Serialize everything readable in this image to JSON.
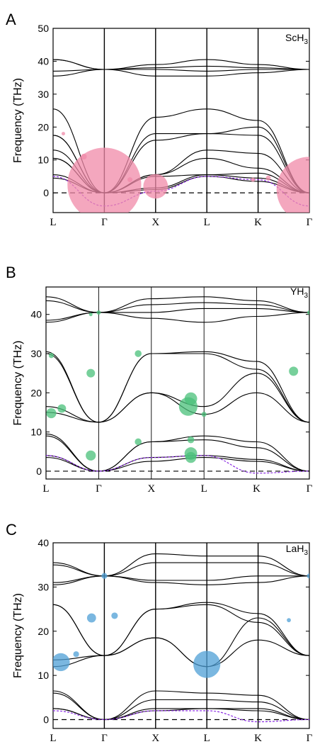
{
  "chart_data": [
    {
      "panel_label": "A",
      "title": "ScH3",
      "title_main": "ScH",
      "title_sub": "3",
      "type": "line",
      "ylabel": "Frequency (THz)",
      "ylim": [
        -6,
        50
      ],
      "yticks": [
        0,
        10,
        20,
        30,
        40,
        50
      ],
      "xticks": [
        "L",
        "Γ",
        "X",
        "L",
        "K",
        "Γ"
      ],
      "xtick_pos": [
        0,
        1,
        2,
        3,
        4,
        5
      ],
      "bubble_color": "#f08aa8",
      "branches": [
        {
          "x": [
            0,
            1,
            2,
            3,
            4,
            5
          ],
          "y": [
            5.5,
            0,
            1.5,
            5.5,
            4.5,
            0
          ]
        },
        {
          "x": [
            0,
            1,
            2,
            3,
            4,
            5
          ],
          "y": [
            4.5,
            0,
            1.0,
            5.0,
            3.5,
            0
          ]
        },
        {
          "x": [
            0,
            1,
            2,
            3,
            4,
            5
          ],
          "y": [
            10.5,
            0,
            5.0,
            5.5,
            6.0,
            0
          ]
        },
        {
          "x": [
            0,
            1,
            2,
            3,
            4,
            5
          ],
          "y": [
            10.5,
            0,
            5.5,
            10.5,
            7.5,
            0
          ]
        },
        {
          "x": [
            0,
            1,
            2,
            3,
            4,
            5
          ],
          "y": [
            13.0,
            0,
            5.5,
            13.0,
            12.0,
            0
          ]
        },
        {
          "x": [
            0,
            1,
            2,
            3,
            4,
            5
          ],
          "y": [
            17.5,
            0,
            16.0,
            18.0,
            20.0,
            0
          ]
        },
        {
          "x": [
            0,
            1,
            2,
            3,
            4,
            5
          ],
          "y": [
            17.5,
            0,
            18.0,
            18.0,
            17.5,
            0
          ]
        },
        {
          "x": [
            0,
            1,
            2,
            3,
            4,
            5
          ],
          "y": [
            25.5,
            0,
            23.0,
            25.5,
            22.0,
            0
          ]
        },
        {
          "x": [
            0,
            1,
            2,
            3,
            4,
            5
          ],
          "y": [
            40.5,
            37.5,
            39.0,
            40.5,
            39.0,
            37.5
          ]
        },
        {
          "x": [
            0,
            1,
            2,
            3,
            4,
            5
          ],
          "y": [
            40.5,
            37.5,
            38.0,
            38.5,
            38.0,
            37.5
          ]
        },
        {
          "x": [
            0,
            1,
            2,
            3,
            4,
            5
          ],
          "y": [
            37.0,
            37.5,
            37.5,
            37.0,
            37.5,
            37.5
          ]
        },
        {
          "x": [
            0,
            1,
            2,
            3,
            4,
            5
          ],
          "y": [
            35.5,
            37.5,
            35.5,
            35.5,
            36.5,
            37.5
          ]
        }
      ],
      "dashed_branches": [
        {
          "x": [
            0,
            1,
            2,
            3,
            4,
            5
          ],
          "y": [
            5.0,
            -4.0,
            0.5,
            5.0,
            4.0,
            -4.0
          ]
        }
      ],
      "bubbles": [
        {
          "x": 1.0,
          "y": 2.5,
          "r": 9.0
        },
        {
          "x": 5.0,
          "y": 1.0,
          "r": 8.0
        },
        {
          "x": 2.0,
          "y": 2.0,
          "r": 3.0
        },
        {
          "x": 0.6,
          "y": 11.0,
          "r": 0.7
        },
        {
          "x": 0.2,
          "y": 18.0,
          "r": 0.3
        },
        {
          "x": 1.5,
          "y": 4.0,
          "r": 0.6
        },
        {
          "x": 4.2,
          "y": 4.5,
          "r": 0.6
        },
        {
          "x": 3.9,
          "y": 4.0,
          "r": 0.5
        }
      ]
    },
    {
      "panel_label": "B",
      "title": "YH3",
      "title_main": "YH",
      "title_sub": "3",
      "type": "line",
      "ylabel": "Frequency (THz)",
      "ylim": [
        -2,
        47
      ],
      "yticks": [
        0,
        10,
        20,
        30,
        40
      ],
      "xticks": [
        "L",
        "Γ",
        "X",
        "L",
        "K",
        "Γ"
      ],
      "xtick_pos": [
        0,
        1,
        2,
        3,
        4,
        5
      ],
      "bubble_color": "#49c07a",
      "branches": [
        {
          "x": [
            0,
            1,
            2,
            3,
            4,
            5
          ],
          "y": [
            4.0,
            0,
            3.5,
            4.0,
            3.0,
            0
          ]
        },
        {
          "x": [
            0,
            1,
            2,
            3,
            4,
            5
          ],
          "y": [
            3.5,
            0,
            2.5,
            3.5,
            2.5,
            0
          ]
        },
        {
          "x": [
            0,
            1,
            2,
            3,
            4,
            5
          ],
          "y": [
            9.0,
            0,
            7.5,
            8.0,
            6.0,
            0
          ]
        },
        {
          "x": [
            0,
            1,
            2,
            3,
            4,
            5
          ],
          "y": [
            9.5,
            0,
            7.5,
            9.0,
            7.5,
            0
          ]
        },
        {
          "x": [
            0,
            1,
            2,
            3,
            4,
            5
          ],
          "y": [
            15.0,
            12.5,
            20.0,
            14.5,
            20.0,
            12.5
          ]
        },
        {
          "x": [
            0,
            1,
            2,
            3,
            4,
            5
          ],
          "y": [
            16.5,
            12.5,
            20.0,
            16.5,
            25.0,
            12.5
          ]
        },
        {
          "x": [
            0,
            1,
            2,
            3,
            4,
            5
          ],
          "y": [
            30.0,
            12.5,
            30.0,
            30.0,
            26.0,
            12.5
          ]
        },
        {
          "x": [
            0,
            1,
            2,
            3,
            4,
            5
          ],
          "y": [
            30.5,
            12.5,
            30.0,
            30.5,
            28.0,
            12.5
          ]
        },
        {
          "x": [
            0,
            1,
            2,
            3,
            4,
            5
          ],
          "y": [
            44.5,
            40.5,
            44.0,
            44.5,
            43.5,
            40.5
          ]
        },
        {
          "x": [
            0,
            1,
            2,
            3,
            4,
            5
          ],
          "y": [
            43.5,
            40.5,
            42.5,
            43.0,
            42.5,
            40.5
          ]
        },
        {
          "x": [
            0,
            1,
            2,
            3,
            4,
            5
          ],
          "y": [
            38.5,
            40.5,
            40.5,
            41.5,
            41.5,
            40.5
          ]
        },
        {
          "x": [
            0,
            1,
            2,
            3,
            4,
            5
          ],
          "y": [
            38.0,
            40.5,
            39.0,
            38.0,
            39.5,
            40.5
          ]
        }
      ],
      "dashed_branches": [
        {
          "x": [
            0,
            1,
            2,
            3,
            4,
            5
          ],
          "y": [
            4.0,
            0,
            3.5,
            4.0,
            -0.5,
            0
          ]
        }
      ],
      "bubbles": [
        {
          "x": 0.3,
          "y": 16.0,
          "r": 1.0
        },
        {
          "x": 0.1,
          "y": 14.8,
          "r": 1.2
        },
        {
          "x": 0.1,
          "y": 29.5,
          "r": 0.6
        },
        {
          "x": 0.85,
          "y": 25.0,
          "r": 1.0
        },
        {
          "x": 0.85,
          "y": 4.0,
          "r": 1.2
        },
        {
          "x": 1.75,
          "y": 30.0,
          "r": 0.8
        },
        {
          "x": 1.75,
          "y": 7.5,
          "r": 0.8
        },
        {
          "x": 2.7,
          "y": 16.5,
          "r": 2.2
        },
        {
          "x": 2.75,
          "y": 18.5,
          "r": 1.5
        },
        {
          "x": 2.75,
          "y": 8.0,
          "r": 0.8
        },
        {
          "x": 2.75,
          "y": 4.5,
          "r": 1.5
        },
        {
          "x": 2.75,
          "y": 3.5,
          "r": 1.3
        },
        {
          "x": 3.0,
          "y": 14.5,
          "r": 0.6
        },
        {
          "x": 4.7,
          "y": 25.5,
          "r": 1.1
        },
        {
          "x": 1.0,
          "y": 40.5,
          "r": 0.5
        },
        {
          "x": 0.85,
          "y": 40.0,
          "r": 0.3
        },
        {
          "x": 5.0,
          "y": 40.5,
          "r": 0.5
        }
      ]
    },
    {
      "panel_label": "C",
      "title": "LaH3",
      "title_main": "LaH",
      "title_sub": "3",
      "type": "line",
      "ylabel": "Frequency (THz)",
      "ylim": [
        -2,
        40
      ],
      "yticks": [
        0,
        10,
        20,
        30,
        40
      ],
      "xticks": [
        "L",
        "Γ",
        "X",
        "L",
        "K",
        "Γ"
      ],
      "xtick_pos": [
        0,
        1,
        2,
        3,
        4,
        5
      ],
      "bubble_color": "#4d9fd6",
      "branches": [
        {
          "x": [
            0,
            1,
            2,
            3,
            4,
            5
          ],
          "y": [
            2.5,
            0,
            2.5,
            2.5,
            2.5,
            0
          ]
        },
        {
          "x": [
            0,
            1,
            2,
            3,
            4,
            5
          ],
          "y": [
            2.5,
            0,
            2.0,
            2.5,
            2.0,
            0
          ]
        },
        {
          "x": [
            0,
            1,
            2,
            3,
            4,
            5
          ],
          "y": [
            6.0,
            0,
            4.5,
            4.5,
            4.0,
            0
          ]
        },
        {
          "x": [
            0,
            1,
            2,
            3,
            4,
            5
          ],
          "y": [
            6.5,
            0,
            6.5,
            6.0,
            5.5,
            0
          ]
        },
        {
          "x": [
            0,
            1,
            2,
            3,
            4,
            5
          ],
          "y": [
            12.0,
            14.5,
            18.5,
            12.0,
            18.0,
            14.5
          ]
        },
        {
          "x": [
            0,
            1,
            2,
            3,
            4,
            5
          ],
          "y": [
            13.5,
            14.5,
            18.5,
            12.0,
            23.0,
            14.5
          ]
        },
        {
          "x": [
            0,
            1,
            2,
            3,
            4,
            5
          ],
          "y": [
            26.0,
            14.5,
            25.0,
            26.0,
            22.0,
            14.5
          ]
        },
        {
          "x": [
            0,
            1,
            2,
            3,
            4,
            5
          ],
          "y": [
            26.0,
            14.5,
            25.0,
            26.5,
            24.0,
            14.5
          ]
        },
        {
          "x": [
            0,
            1,
            2,
            3,
            4,
            5
          ],
          "y": [
            35.5,
            32.5,
            37.5,
            37.0,
            37.0,
            32.5
          ]
        },
        {
          "x": [
            0,
            1,
            2,
            3,
            4,
            5
          ],
          "y": [
            35.0,
            32.5,
            35.5,
            35.5,
            35.5,
            32.5
          ]
        },
        {
          "x": [
            0,
            1,
            2,
            3,
            4,
            5
          ],
          "y": [
            31.0,
            32.5,
            31.5,
            31.5,
            32.5,
            32.5
          ]
        },
        {
          "x": [
            0,
            1,
            2,
            3,
            4,
            5
          ],
          "y": [
            30.5,
            32.5,
            31.0,
            30.5,
            31.0,
            32.5
          ]
        }
      ],
      "dashed_branches": [
        {
          "x": [
            0,
            1,
            2,
            3,
            4,
            5
          ],
          "y": [
            2.0,
            0,
            2.0,
            2.0,
            -0.5,
            0
          ]
        }
      ],
      "bubbles": [
        {
          "x": 0.15,
          "y": 13.0,
          "r": 2.2
        },
        {
          "x": 0.45,
          "y": 14.8,
          "r": 0.7
        },
        {
          "x": 0.75,
          "y": 23.0,
          "r": 1.1
        },
        {
          "x": 1.2,
          "y": 23.5,
          "r": 0.8
        },
        {
          "x": 1.0,
          "y": 32.5,
          "r": 0.7
        },
        {
          "x": 3.0,
          "y": 12.5,
          "r": 3.3
        },
        {
          "x": 4.6,
          "y": 22.5,
          "r": 0.5
        },
        {
          "x": 5.0,
          "y": 32.5,
          "r": 0.6
        }
      ]
    }
  ]
}
